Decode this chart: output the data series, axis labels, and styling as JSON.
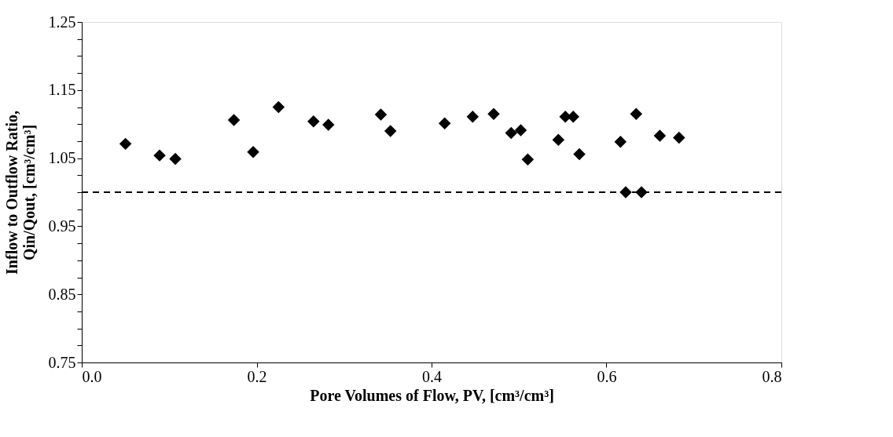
{
  "chart_data": {
    "type": "scatter",
    "xlabel": "Pore Volumes of Flow, PV, [cm³/cm³]",
    "ylabel": "Inflow to Outflow Ratio,\nQin/Qout, [cm³/cm³]",
    "x": [
      0.05,
      0.089,
      0.107,
      0.174,
      0.196,
      0.225,
      0.265,
      0.282,
      0.342,
      0.353,
      0.415,
      0.447,
      0.471,
      0.491,
      0.502,
      0.51,
      0.545,
      0.553,
      0.562,
      0.569,
      0.616,
      0.622,
      0.634,
      0.64,
      0.661,
      0.683
    ],
    "series": [
      {
        "color": "#000000",
        "values": [
          1.071,
          1.054,
          1.049,
          1.106,
          1.059,
          1.125,
          1.104,
          1.099,
          1.114,
          1.09,
          1.101,
          1.111,
          1.115,
          1.087,
          1.091,
          1.048,
          1.077,
          1.111,
          1.111,
          1.056,
          1.074,
          1.0,
          1.115,
          1.0,
          1.083,
          1.08
        ]
      }
    ],
    "marker": "diamond",
    "xlim": [
      0,
      0.8
    ],
    "xticks": [
      {
        "value": 0,
        "label": "0.0"
      },
      0.2,
      0.4,
      0.6,
      0.8
    ],
    "ylim": [
      0.75,
      1.25
    ],
    "yticks": [
      0.75,
      {
        "value": 0.775,
        "label": null
      },
      {
        "value": 0.8,
        "label": null
      },
      {
        "value": 0.825,
        "label": null
      },
      0.85,
      {
        "value": 0.875,
        "label": null
      },
      {
        "value": 0.9,
        "label": null
      },
      {
        "value": 0.925,
        "label": null
      },
      0.95,
      {
        "value": 0.975,
        "label": null
      },
      {
        "value": 1.0,
        "label": null
      },
      {
        "value": 1.025,
        "label": null
      },
      1.05,
      {
        "value": 1.075,
        "label": null
      },
      {
        "value": 1.1,
        "label": null
      },
      {
        "value": 1.125,
        "label": null
      },
      1.15,
      {
        "value": 1.175,
        "label": null
      },
      {
        "value": 1.2,
        "label": null
      },
      {
        "value": 1.225,
        "label": null
      },
      1.25
    ],
    "ref_lines": [
      {
        "axis": "y",
        "value": 1.0,
        "color": "#000000",
        "line_style": "dashed"
      }
    ],
    "grid": false
  }
}
